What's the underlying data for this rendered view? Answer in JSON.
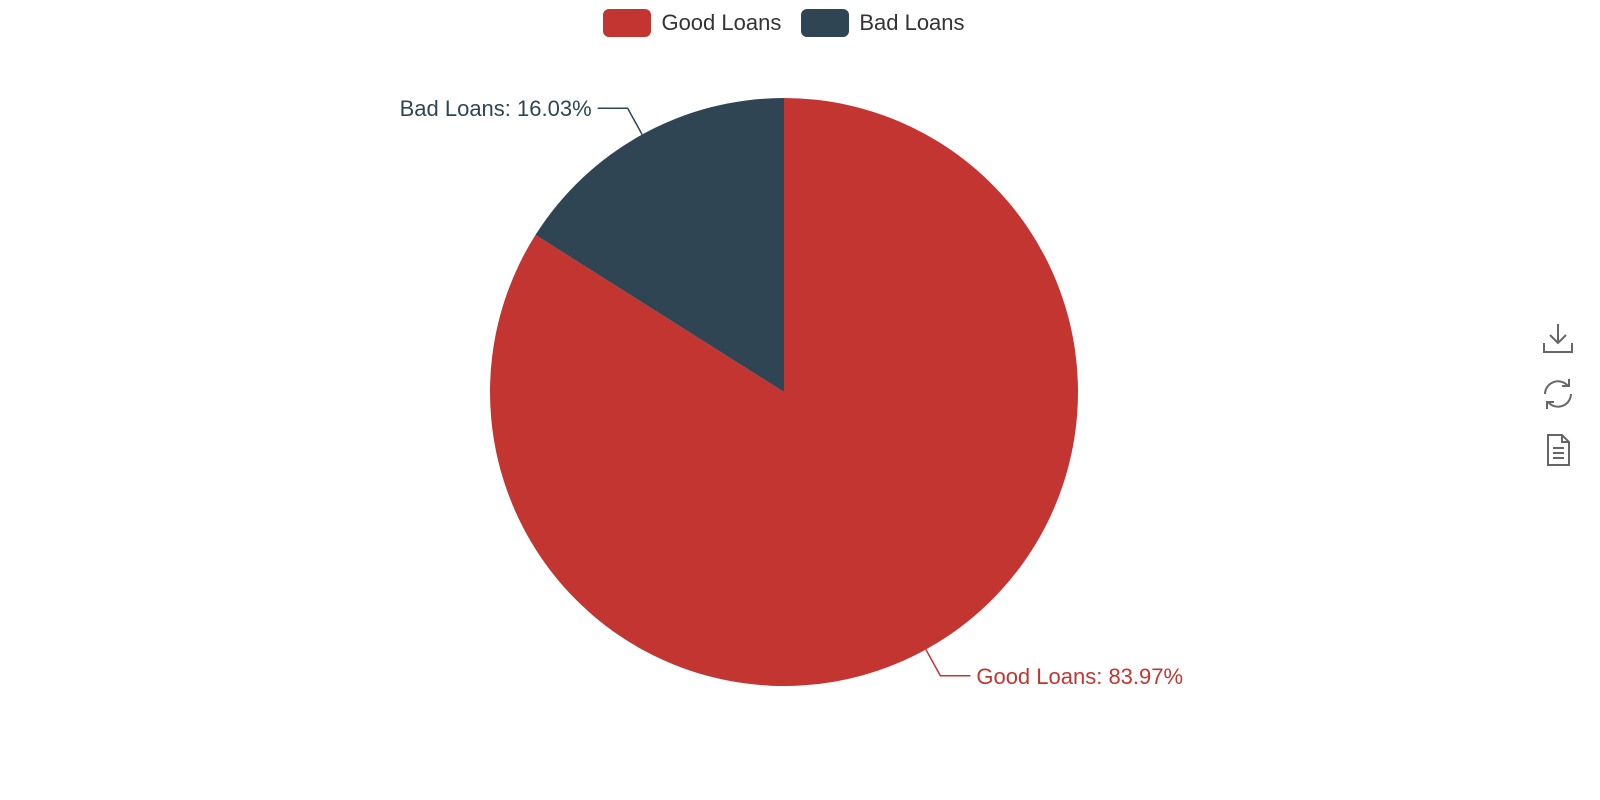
{
  "chart_data": {
    "type": "pie",
    "categories": [
      "Good Loans",
      "Bad Loans"
    ],
    "values": [
      83.97,
      16.03
    ],
    "colors": [
      "#c23531",
      "#2f4554"
    ],
    "data_labels": [
      "Good Loans: 83.97%",
      "Bad Loans: 16.03%"
    ],
    "legend": {
      "placement": "top-center",
      "entries": [
        "Good Loans",
        "Bad Loans"
      ]
    },
    "start_angle_deg": 90,
    "direction": "clockwise"
  },
  "legend": {
    "items": [
      {
        "label": "Good Loans",
        "color": "#c23531"
      },
      {
        "label": "Bad Loans",
        "color": "#2f4554"
      }
    ]
  },
  "toolbox": {
    "icons": [
      "download-icon",
      "refresh-icon",
      "data-view-icon"
    ]
  }
}
